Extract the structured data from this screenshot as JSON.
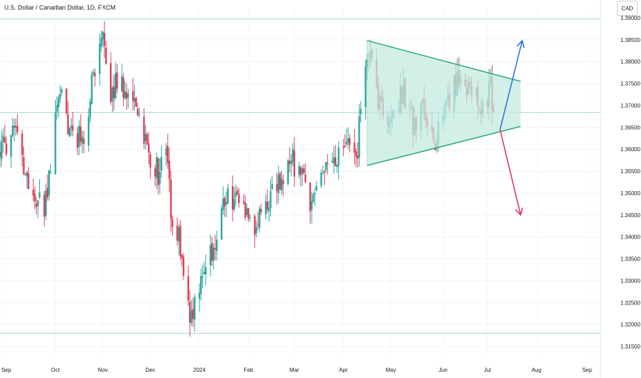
{
  "header": {
    "symbol_title": "U.S. Dollar / Canadian Dollar, 1D, FXCM"
  },
  "currency_button": "CAD",
  "colors": {
    "up": "#26a69a",
    "down": "#e03b54",
    "triangle_line": "#26a67a",
    "triangle_fill": "#c4ebe0",
    "arrow_up": "#2f6fe0",
    "arrow_down": "#e0315c",
    "hline": "#9ed6cf",
    "grid": "#f0f3fa"
  },
  "chart_data": {
    "type": "candlestick",
    "symbol": "USDCAD",
    "interval": "1D",
    "source": "FXCM",
    "y_axis": {
      "min": 1.3125,
      "max": 1.3925,
      "ticks": [
        1.315,
        1.32,
        1.325,
        1.33,
        1.335,
        1.34,
        1.345,
        1.35,
        1.355,
        1.36,
        1.365,
        1.37,
        1.375,
        1.38,
        1.385,
        1.39
      ],
      "tick_labels": [
        "1.31500",
        "1.32000",
        "1.32500",
        "1.33000",
        "1.33500",
        "1.34000",
        "1.34500",
        "1.35000",
        "1.35500",
        "1.36000",
        "1.36500",
        "1.37000",
        "1.37500",
        "1.38000",
        "1.38500",
        "1.39000"
      ]
    },
    "x_axis": {
      "start": "2023-08-28",
      "end": "2024-09-10",
      "tick_labels": [
        {
          "date": "2023-09-01",
          "label": "Sep"
        },
        {
          "date": "2023-10-02",
          "label": "Oct"
        },
        {
          "date": "2023-11-01",
          "label": "Nov"
        },
        {
          "date": "2023-12-01",
          "label": "Dec"
        },
        {
          "date": "2024-01-01",
          "label": "2024"
        },
        {
          "date": "2024-02-01",
          "label": "Feb"
        },
        {
          "date": "2024-03-01",
          "label": "Mar"
        },
        {
          "date": "2024-04-01",
          "label": "Apr"
        },
        {
          "date": "2024-05-01",
          "label": "May"
        },
        {
          "date": "2024-06-03",
          "label": "Jun"
        },
        {
          "date": "2024-07-01",
          "label": "Jul"
        },
        {
          "date": "2024-08-01",
          "label": "Aug"
        },
        {
          "date": "2024-09-02",
          "label": "Sep"
        }
      ]
    },
    "close_path": [
      [
        "2023-08-28",
        1.36
      ],
      [
        "2023-09-07",
        1.363
      ],
      [
        "2023-09-12",
        1.356
      ],
      [
        "2023-09-18",
        1.349
      ],
      [
        "2023-09-25",
        1.347
      ],
      [
        "2023-09-29",
        1.356
      ],
      [
        "2023-10-05",
        1.375
      ],
      [
        "2023-10-09",
        1.367
      ],
      [
        "2023-10-16",
        1.362
      ],
      [
        "2023-10-20",
        1.364
      ],
      [
        "2023-10-27",
        1.378
      ],
      [
        "2023-11-01",
        1.386
      ],
      [
        "2023-11-02",
        1.381
      ],
      [
        "2023-11-06",
        1.368
      ],
      [
        "2023-11-09",
        1.378
      ],
      [
        "2023-11-14",
        1.373
      ],
      [
        "2023-11-21",
        1.371
      ],
      [
        "2023-11-27",
        1.364
      ],
      [
        "2023-12-01",
        1.357
      ],
      [
        "2023-12-06",
        1.355
      ],
      [
        "2023-12-12",
        1.359
      ],
      [
        "2023-12-14",
        1.341
      ],
      [
        "2023-12-19",
        1.339
      ],
      [
        "2023-12-27",
        1.321
      ],
      [
        "2024-01-03",
        1.332
      ],
      [
        "2024-01-08",
        1.336
      ],
      [
        "2024-01-12",
        1.341
      ],
      [
        "2024-01-18",
        1.35
      ],
      [
        "2024-01-24",
        1.348
      ],
      [
        "2024-01-31",
        1.347
      ],
      [
        "2024-02-06",
        1.341
      ],
      [
        "2024-02-13",
        1.349
      ],
      [
        "2024-02-22",
        1.353
      ],
      [
        "2024-02-29",
        1.357
      ],
      [
        "2024-03-06",
        1.353
      ],
      [
        "2024-03-12",
        1.347
      ],
      [
        "2024-03-18",
        1.356
      ],
      [
        "2024-03-27",
        1.356
      ],
      [
        "2024-04-03",
        1.361
      ],
      [
        "2024-04-09",
        1.356
      ],
      [
        "2024-04-12",
        1.37
      ],
      [
        "2024-04-16",
        1.382
      ],
      [
        "2024-04-19",
        1.378
      ],
      [
        "2024-04-24",
        1.37
      ],
      [
        "2024-04-30",
        1.366
      ],
      [
        "2024-05-03",
        1.369
      ],
      [
        "2024-05-09",
        1.374
      ],
      [
        "2024-05-15",
        1.366
      ],
      [
        "2024-05-21",
        1.369
      ],
      [
        "2024-05-28",
        1.362
      ],
      [
        "2024-06-04",
        1.366
      ],
      [
        "2024-06-07",
        1.371
      ],
      [
        "2024-06-11",
        1.375
      ],
      [
        "2024-06-14",
        1.377
      ],
      [
        "2024-06-21",
        1.374
      ],
      [
        "2024-06-26",
        1.37
      ],
      [
        "2024-06-28",
        1.368
      ],
      [
        "2024-07-03",
        1.374
      ],
      [
        "2024-07-05",
        1.368
      ]
    ],
    "horizontal_lines": [
      {
        "price": 1.3897
      },
      {
        "price": 1.3684
      },
      {
        "price": 1.318
      }
    ],
    "triangle": {
      "upper": [
        [
          "2024-04-16",
          1.3848
        ],
        [
          "2024-07-22",
          1.3755
        ]
      ],
      "lower": [
        [
          "2024-04-16",
          1.3563
        ],
        [
          "2024-07-22",
          1.3652
        ]
      ]
    },
    "arrows": [
      {
        "direction": "up",
        "from": [
          "2024-07-09",
          1.3645
        ],
        "to": [
          "2024-07-23",
          1.3848
        ]
      },
      {
        "direction": "down",
        "from": [
          "2024-07-09",
          1.3645
        ],
        "to": [
          "2024-07-22",
          1.345
        ]
      }
    ]
  }
}
